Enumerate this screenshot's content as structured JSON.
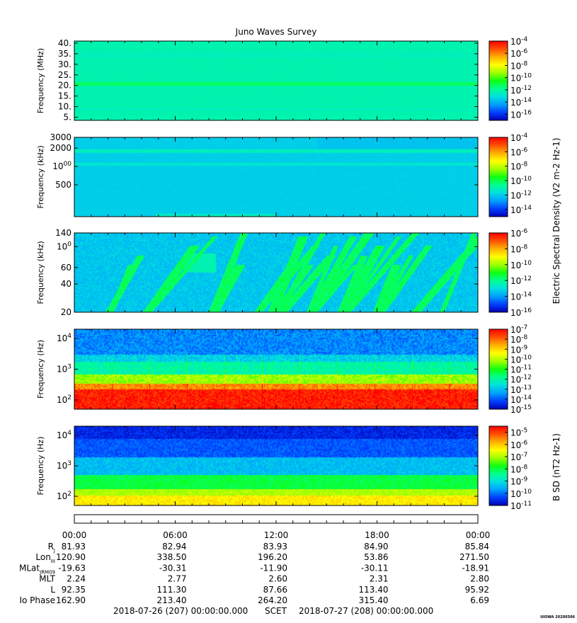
{
  "title": "Juno Waves Survey",
  "colors": {
    "colormap": [
      "#0000b4",
      "#0040ff",
      "#00a0ff",
      "#00e0e0",
      "#00ff90",
      "#10ff10",
      "#a0ff00",
      "#ffff00",
      "#ffb000",
      "#ff5000",
      "#ff0000"
    ],
    "background": "#ffffff"
  },
  "chart_data": [
    {
      "type": "heatmap",
      "name": "panel-mhz",
      "ylabel": "Frequency (MHz)",
      "y_scale": "linear",
      "ylim": [
        3.5,
        41
      ],
      "y_ticks": [
        "40.",
        "35.",
        "30.",
        "25.",
        "20.",
        "15.",
        "10.",
        "5."
      ],
      "y_tick_values": [
        40,
        35,
        30,
        25,
        20,
        15,
        10,
        5
      ],
      "colorbar_ticks": [
        "10-4",
        "10-6",
        "10-8",
        "10-10",
        "10-12",
        "10-14",
        "10-16"
      ],
      "colorbar_range_exp": [
        -17,
        -4
      ],
      "background_level": -12.3,
      "bands": [
        {
          "y": 21,
          "level": -11.4,
          "note": "bright line"
        },
        {
          "y": 9,
          "level": -12.6
        }
      ]
    },
    {
      "type": "heatmap",
      "name": "panel-khz-high",
      "ylabel": "Frequency (kHz)",
      "y_scale": "log",
      "ylim": [
        150,
        3000
      ],
      "y_ticks": [
        "3000",
        "2000",
        "1000",
        "500"
      ],
      "y_tick_values": [
        3000,
        2000,
        1000,
        500
      ],
      "colorbar_ticks": [
        "10-4",
        "10-6",
        "10-8",
        "10-10",
        "10-12",
        "10-14"
      ],
      "colorbar_range_exp": [
        -15,
        -4
      ],
      "colorbar_label": "Electric Spectral Density (V2 m-2 Hz-1)",
      "background_level": -12.0,
      "bands": [
        {
          "y": 1800,
          "level": -11.2
        },
        {
          "y": 1100,
          "level": -11.4
        }
      ]
    },
    {
      "type": "heatmap",
      "name": "panel-khz-low",
      "ylabel": "Frequency (kHz)",
      "y_scale": "log",
      "ylim": [
        20,
        140
      ],
      "y_ticks": [
        "140",
        "100",
        "60",
        "40",
        "20"
      ],
      "y_tick_values": [
        140,
        100,
        60,
        40,
        20
      ],
      "colorbar_ticks": [
        "10-6",
        "10-8",
        "10-10",
        "10-12",
        "10-14",
        "10-16"
      ],
      "colorbar_range_exp": [
        -16,
        -6
      ],
      "background_level": -13.4
    },
    {
      "type": "heatmap",
      "name": "panel-hz-electric",
      "ylabel": "Frequency (Hz)",
      "y_scale": "log",
      "ylim": [
        50,
        20000
      ],
      "y_ticks": [
        "104",
        "103",
        "102"
      ],
      "y_tick_values": [
        10000,
        1000,
        100
      ],
      "colorbar_ticks": [
        "10-7",
        "10-8",
        "10-9",
        "10-10",
        "10-11",
        "10-12",
        "10-13",
        "10-14",
        "10-15"
      ],
      "colorbar_range_exp": [
        -15,
        -7
      ]
    },
    {
      "type": "heatmap",
      "name": "panel-hz-magnetic",
      "ylabel": "Frequency (Hz)",
      "y_scale": "log",
      "ylim": [
        50,
        20000
      ],
      "y_ticks": [
        "104",
        "103",
        "102"
      ],
      "y_tick_values": [
        10000,
        1000,
        100
      ],
      "colorbar_ticks": [
        "10-5",
        "10-6",
        "10-7",
        "10-8",
        "10-9",
        "10-10",
        "10-11"
      ],
      "colorbar_range_exp": [
        -11,
        -4.5
      ],
      "colorbar_label": "B SD (nT2 Hz-1)"
    }
  ],
  "time_axis": {
    "ticks": [
      "00:00",
      "06:00",
      "12:00",
      "18:00",
      "00:00"
    ],
    "rows": [
      {
        "label": "Rj",
        "values": [
          "81.93",
          "82.94",
          "83.93",
          "84.90",
          "85.84"
        ]
      },
      {
        "label": "LonIII",
        "values": [
          "120.90",
          "338.50",
          "196.20",
          "53.86",
          "271.50"
        ]
      },
      {
        "label": "MLatJRM09",
        "values": [
          "-19.63",
          "-30.31",
          "-11.90",
          "-30.11",
          "-18.91"
        ]
      },
      {
        "label": "MLT",
        "values": [
          "2.24",
          "2.77",
          "2.60",
          "2.31",
          "2.80"
        ]
      },
      {
        "label": "L",
        "values": [
          "92.35",
          "111.30",
          "87.66",
          "113.40",
          "95.92"
        ]
      },
      {
        "label": "Io Phase",
        "values": [
          "162.90",
          "213.40",
          "264.20",
          "315.40",
          "6.69"
        ]
      }
    ],
    "start": "2018-07-26 (207) 00:00:00.000",
    "scet": "SCET",
    "end": "2018-07-27 (208) 00:00:00.000"
  },
  "stamp": "UIOWA 20200306"
}
